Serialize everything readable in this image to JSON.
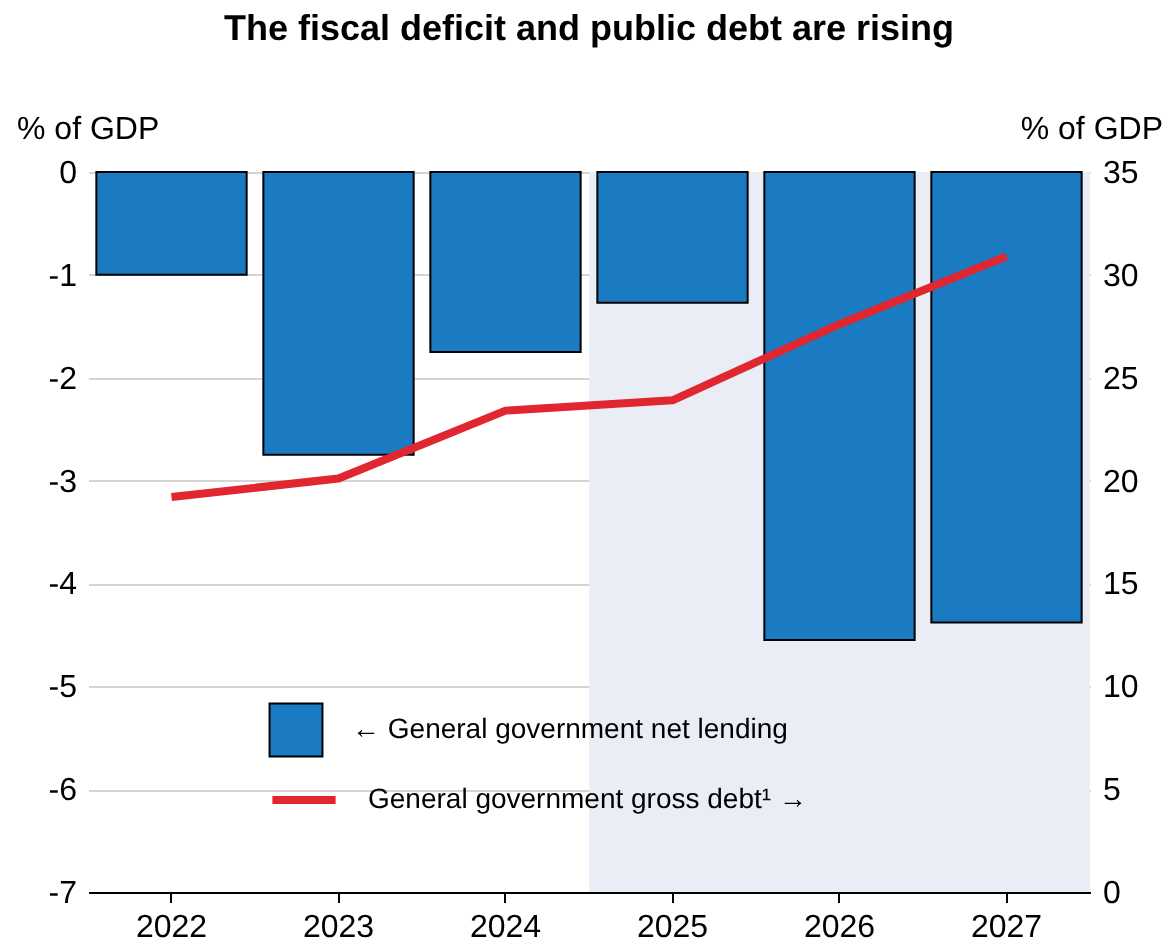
{
  "chart_data": {
    "type": "bar",
    "title": "The fiscal deficit and public debt are rising",
    "categories": [
      "2022",
      "2023",
      "2024",
      "2025",
      "2026",
      "2027"
    ],
    "series": [
      {
        "name": "← General government net lending",
        "color": "#1a7ac2",
        "values": [
          -1.0,
          -2.75,
          -1.75,
          -1.27,
          -4.55,
          -4.38
        ]
      },
      {
        "type": "line",
        "name": "General government gross debt¹ →",
        "color": "#e0262f",
        "axis": "y2",
        "values": [
          19.2,
          20.1,
          23.4,
          23.9,
          27.6,
          30.9
        ]
      }
    ],
    "ylabel": "% of GDP",
    "y2label": "% of GDP",
    "ylim": [
      -7,
      0
    ],
    "yticks": [
      -7,
      -6,
      -5,
      -4,
      -3,
      -2,
      -1,
      0
    ],
    "y2lim": [
      0,
      35
    ],
    "y2ticks": [
      0,
      5,
      10,
      15,
      20,
      25,
      30,
      35
    ],
    "bands": [
      {
        "axis": "x",
        "from": "2025",
        "to": "2027",
        "color": "#eaedf5"
      }
    ],
    "grid": "y",
    "legend": "bottom left"
  }
}
